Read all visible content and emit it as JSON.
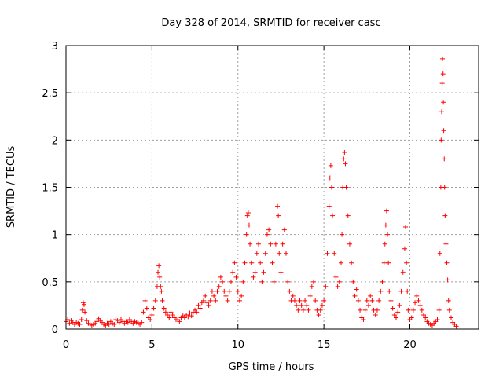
{
  "chart_data": {
    "type": "scatter",
    "title": "Day 328 of 2014, SRMTID for receiver casc",
    "xlabel": "GPS time / hours",
    "ylabel": "SRMTID / TECUs",
    "xlim": [
      0,
      24
    ],
    "ylim": [
      0,
      3
    ],
    "xticks": [
      0,
      5,
      10,
      15,
      20
    ],
    "xtick_labels": [
      "0",
      "5",
      "10",
      "15",
      "20"
    ],
    "yticks": [
      0,
      0.5,
      1,
      1.5,
      2,
      2.5,
      3
    ],
    "ytick_labels": [
      "0",
      "0.5",
      "1",
      "1.5",
      "2",
      "2.5",
      "3"
    ],
    "grid": true,
    "marker": "+",
    "color": "#ff0000",
    "series": [
      {
        "name": "SRMTID",
        "points": [
          [
            0.0,
            0.08
          ],
          [
            0.1,
            0.1
          ],
          [
            0.2,
            0.06
          ],
          [
            0.3,
            0.09
          ],
          [
            0.4,
            0.07
          ],
          [
            0.5,
            0.05
          ],
          [
            0.6,
            0.07
          ],
          [
            0.7,
            0.06
          ],
          [
            0.8,
            0.05
          ],
          [
            0.9,
            0.1
          ],
          [
            0.95,
            0.2
          ],
          [
            1.0,
            0.28
          ],
          [
            1.05,
            0.26
          ],
          [
            1.1,
            0.18
          ],
          [
            1.2,
            0.09
          ],
          [
            1.3,
            0.06
          ],
          [
            1.4,
            0.05
          ],
          [
            1.5,
            0.04
          ],
          [
            1.6,
            0.05
          ],
          [
            1.7,
            0.06
          ],
          [
            1.8,
            0.08
          ],
          [
            1.9,
            0.11
          ],
          [
            2.0,
            0.09
          ],
          [
            2.1,
            0.07
          ],
          [
            2.2,
            0.05
          ],
          [
            2.3,
            0.04
          ],
          [
            2.4,
            0.06
          ],
          [
            2.5,
            0.05
          ],
          [
            2.6,
            0.08
          ],
          [
            2.7,
            0.06
          ],
          [
            2.8,
            0.05
          ],
          [
            2.9,
            0.1
          ],
          [
            3.0,
            0.09
          ],
          [
            3.1,
            0.07
          ],
          [
            3.2,
            0.1
          ],
          [
            3.3,
            0.08
          ],
          [
            3.4,
            0.06
          ],
          [
            3.5,
            0.08
          ],
          [
            3.6,
            0.07
          ],
          [
            3.7,
            0.1
          ],
          [
            3.8,
            0.08
          ],
          [
            3.9,
            0.06
          ],
          [
            4.0,
            0.08
          ],
          [
            4.1,
            0.07
          ],
          [
            4.2,
            0.06
          ],
          [
            4.3,
            0.05
          ],
          [
            4.4,
            0.07
          ],
          [
            4.5,
            0.18
          ],
          [
            4.6,
            0.3
          ],
          [
            4.7,
            0.22
          ],
          [
            4.8,
            0.12
          ],
          [
            4.9,
            0.1
          ],
          [
            5.0,
            0.15
          ],
          [
            5.1,
            0.22
          ],
          [
            5.2,
            0.3
          ],
          [
            5.3,
            0.45
          ],
          [
            5.35,
            0.6
          ],
          [
            5.4,
            0.67
          ],
          [
            5.45,
            0.55
          ],
          [
            5.5,
            0.45
          ],
          [
            5.55,
            0.4
          ],
          [
            5.6,
            0.3
          ],
          [
            5.7,
            0.22
          ],
          [
            5.8,
            0.18
          ],
          [
            5.9,
            0.15
          ],
          [
            6.0,
            0.12
          ],
          [
            6.1,
            0.18
          ],
          [
            6.2,
            0.15
          ],
          [
            6.3,
            0.12
          ],
          [
            6.4,
            0.1
          ],
          [
            6.5,
            0.1
          ],
          [
            6.6,
            0.08
          ],
          [
            6.7,
            0.12
          ],
          [
            6.8,
            0.14
          ],
          [
            6.9,
            0.12
          ],
          [
            7.0,
            0.15
          ],
          [
            7.1,
            0.13
          ],
          [
            7.2,
            0.17
          ],
          [
            7.3,
            0.14
          ],
          [
            7.4,
            0.18
          ],
          [
            7.5,
            0.2
          ],
          [
            7.6,
            0.18
          ],
          [
            7.7,
            0.25
          ],
          [
            7.8,
            0.22
          ],
          [
            7.9,
            0.28
          ],
          [
            8.0,
            0.3
          ],
          [
            8.1,
            0.35
          ],
          [
            8.2,
            0.28
          ],
          [
            8.3,
            0.25
          ],
          [
            8.4,
            0.3
          ],
          [
            8.5,
            0.4
          ],
          [
            8.6,
            0.35
          ],
          [
            8.7,
            0.3
          ],
          [
            8.8,
            0.4
          ],
          [
            8.9,
            0.45
          ],
          [
            9.0,
            0.55
          ],
          [
            9.1,
            0.5
          ],
          [
            9.2,
            0.4
          ],
          [
            9.3,
            0.35
          ],
          [
            9.4,
            0.3
          ],
          [
            9.5,
            0.4
          ],
          [
            9.6,
            0.5
          ],
          [
            9.7,
            0.6
          ],
          [
            9.8,
            0.7
          ],
          [
            9.9,
            0.55
          ],
          [
            10.0,
            0.4
          ],
          [
            10.1,
            0.3
          ],
          [
            10.2,
            0.35
          ],
          [
            10.3,
            0.5
          ],
          [
            10.4,
            0.7
          ],
          [
            10.5,
            1.0
          ],
          [
            10.55,
            1.2
          ],
          [
            10.6,
            1.23
          ],
          [
            10.65,
            1.1
          ],
          [
            10.7,
            0.9
          ],
          [
            10.8,
            0.7
          ],
          [
            10.9,
            0.55
          ],
          [
            11.0,
            0.6
          ],
          [
            11.1,
            0.8
          ],
          [
            11.2,
            0.9
          ],
          [
            11.3,
            0.7
          ],
          [
            11.4,
            0.5
          ],
          [
            11.5,
            0.6
          ],
          [
            11.6,
            0.8
          ],
          [
            11.7,
            1.0
          ],
          [
            11.8,
            1.05
          ],
          [
            11.9,
            0.9
          ],
          [
            12.0,
            0.7
          ],
          [
            12.1,
            0.5
          ],
          [
            12.2,
            0.9
          ],
          [
            12.3,
            1.3
          ],
          [
            12.35,
            1.2
          ],
          [
            12.4,
            0.8
          ],
          [
            12.5,
            0.6
          ],
          [
            12.6,
            0.9
          ],
          [
            12.7,
            1.05
          ],
          [
            12.8,
            0.8
          ],
          [
            12.9,
            0.5
          ],
          [
            13.0,
            0.4
          ],
          [
            13.1,
            0.3
          ],
          [
            13.2,
            0.35
          ],
          [
            13.3,
            0.3
          ],
          [
            13.4,
            0.25
          ],
          [
            13.5,
            0.2
          ],
          [
            13.6,
            0.3
          ],
          [
            13.7,
            0.25
          ],
          [
            13.8,
            0.2
          ],
          [
            13.9,
            0.3
          ],
          [
            14.0,
            0.25
          ],
          [
            14.1,
            0.2
          ],
          [
            14.2,
            0.35
          ],
          [
            14.3,
            0.45
          ],
          [
            14.4,
            0.5
          ],
          [
            14.5,
            0.3
          ],
          [
            14.6,
            0.2
          ],
          [
            14.7,
            0.15
          ],
          [
            14.8,
            0.2
          ],
          [
            14.9,
            0.25
          ],
          [
            15.0,
            0.3
          ],
          [
            15.1,
            0.45
          ],
          [
            15.2,
            0.8
          ],
          [
            15.3,
            1.3
          ],
          [
            15.35,
            1.6
          ],
          [
            15.4,
            1.73
          ],
          [
            15.45,
            1.5
          ],
          [
            15.5,
            1.2
          ],
          [
            15.6,
            0.8
          ],
          [
            15.7,
            0.55
          ],
          [
            15.8,
            0.45
          ],
          [
            15.9,
            0.5
          ],
          [
            16.0,
            0.7
          ],
          [
            16.05,
            1.0
          ],
          [
            16.1,
            1.5
          ],
          [
            16.15,
            1.8
          ],
          [
            16.2,
            1.87
          ],
          [
            16.25,
            1.75
          ],
          [
            16.3,
            1.5
          ],
          [
            16.4,
            1.2
          ],
          [
            16.5,
            0.9
          ],
          [
            16.6,
            0.7
          ],
          [
            16.7,
            0.5
          ],
          [
            16.8,
            0.35
          ],
          [
            16.9,
            0.42
          ],
          [
            17.0,
            0.3
          ],
          [
            17.1,
            0.2
          ],
          [
            17.2,
            0.12
          ],
          [
            17.3,
            0.1
          ],
          [
            17.4,
            0.2
          ],
          [
            17.5,
            0.3
          ],
          [
            17.6,
            0.25
          ],
          [
            17.7,
            0.35
          ],
          [
            17.8,
            0.3
          ],
          [
            17.9,
            0.2
          ],
          [
            18.0,
            0.15
          ],
          [
            18.1,
            0.2
          ],
          [
            18.2,
            0.3
          ],
          [
            18.3,
            0.4
          ],
          [
            18.4,
            0.5
          ],
          [
            18.5,
            0.7
          ],
          [
            18.55,
            0.9
          ],
          [
            18.6,
            1.1
          ],
          [
            18.65,
            1.25
          ],
          [
            18.7,
            1.0
          ],
          [
            18.75,
            0.7
          ],
          [
            18.8,
            0.4
          ],
          [
            18.9,
            0.3
          ],
          [
            19.0,
            0.22
          ],
          [
            19.1,
            0.15
          ],
          [
            19.2,
            0.12
          ],
          [
            19.3,
            0.18
          ],
          [
            19.4,
            0.25
          ],
          [
            19.5,
            0.4
          ],
          [
            19.6,
            0.6
          ],
          [
            19.7,
            0.85
          ],
          [
            19.75,
            1.08
          ],
          [
            19.8,
            0.7
          ],
          [
            19.85,
            0.4
          ],
          [
            19.9,
            0.2
          ],
          [
            20.0,
            0.1
          ],
          [
            20.1,
            0.12
          ],
          [
            20.2,
            0.2
          ],
          [
            20.3,
            0.28
          ],
          [
            20.4,
            0.35
          ],
          [
            20.5,
            0.3
          ],
          [
            20.6,
            0.25
          ],
          [
            20.7,
            0.2
          ],
          [
            20.8,
            0.15
          ],
          [
            20.9,
            0.12
          ],
          [
            21.0,
            0.08
          ],
          [
            21.1,
            0.06
          ],
          [
            21.2,
            0.05
          ],
          [
            21.3,
            0.04
          ],
          [
            21.4,
            0.06
          ],
          [
            21.5,
            0.08
          ],
          [
            21.6,
            0.1
          ],
          [
            21.7,
            0.2
          ],
          [
            21.75,
            0.8
          ],
          [
            21.8,
            1.5
          ],
          [
            21.82,
            2.0
          ],
          [
            21.85,
            2.3
          ],
          [
            21.88,
            2.6
          ],
          [
            21.9,
            2.86
          ],
          [
            21.93,
            2.7
          ],
          [
            21.95,
            2.4
          ],
          [
            21.97,
            2.1
          ],
          [
            22.0,
            1.8
          ],
          [
            22.02,
            1.5
          ],
          [
            22.05,
            1.2
          ],
          [
            22.1,
            0.9
          ],
          [
            22.15,
            0.7
          ],
          [
            22.2,
            0.52
          ],
          [
            22.25,
            0.3
          ],
          [
            22.3,
            0.2
          ],
          [
            22.4,
            0.12
          ],
          [
            22.5,
            0.07
          ],
          [
            22.6,
            0.05
          ],
          [
            22.7,
            0.03
          ]
        ]
      }
    ]
  }
}
